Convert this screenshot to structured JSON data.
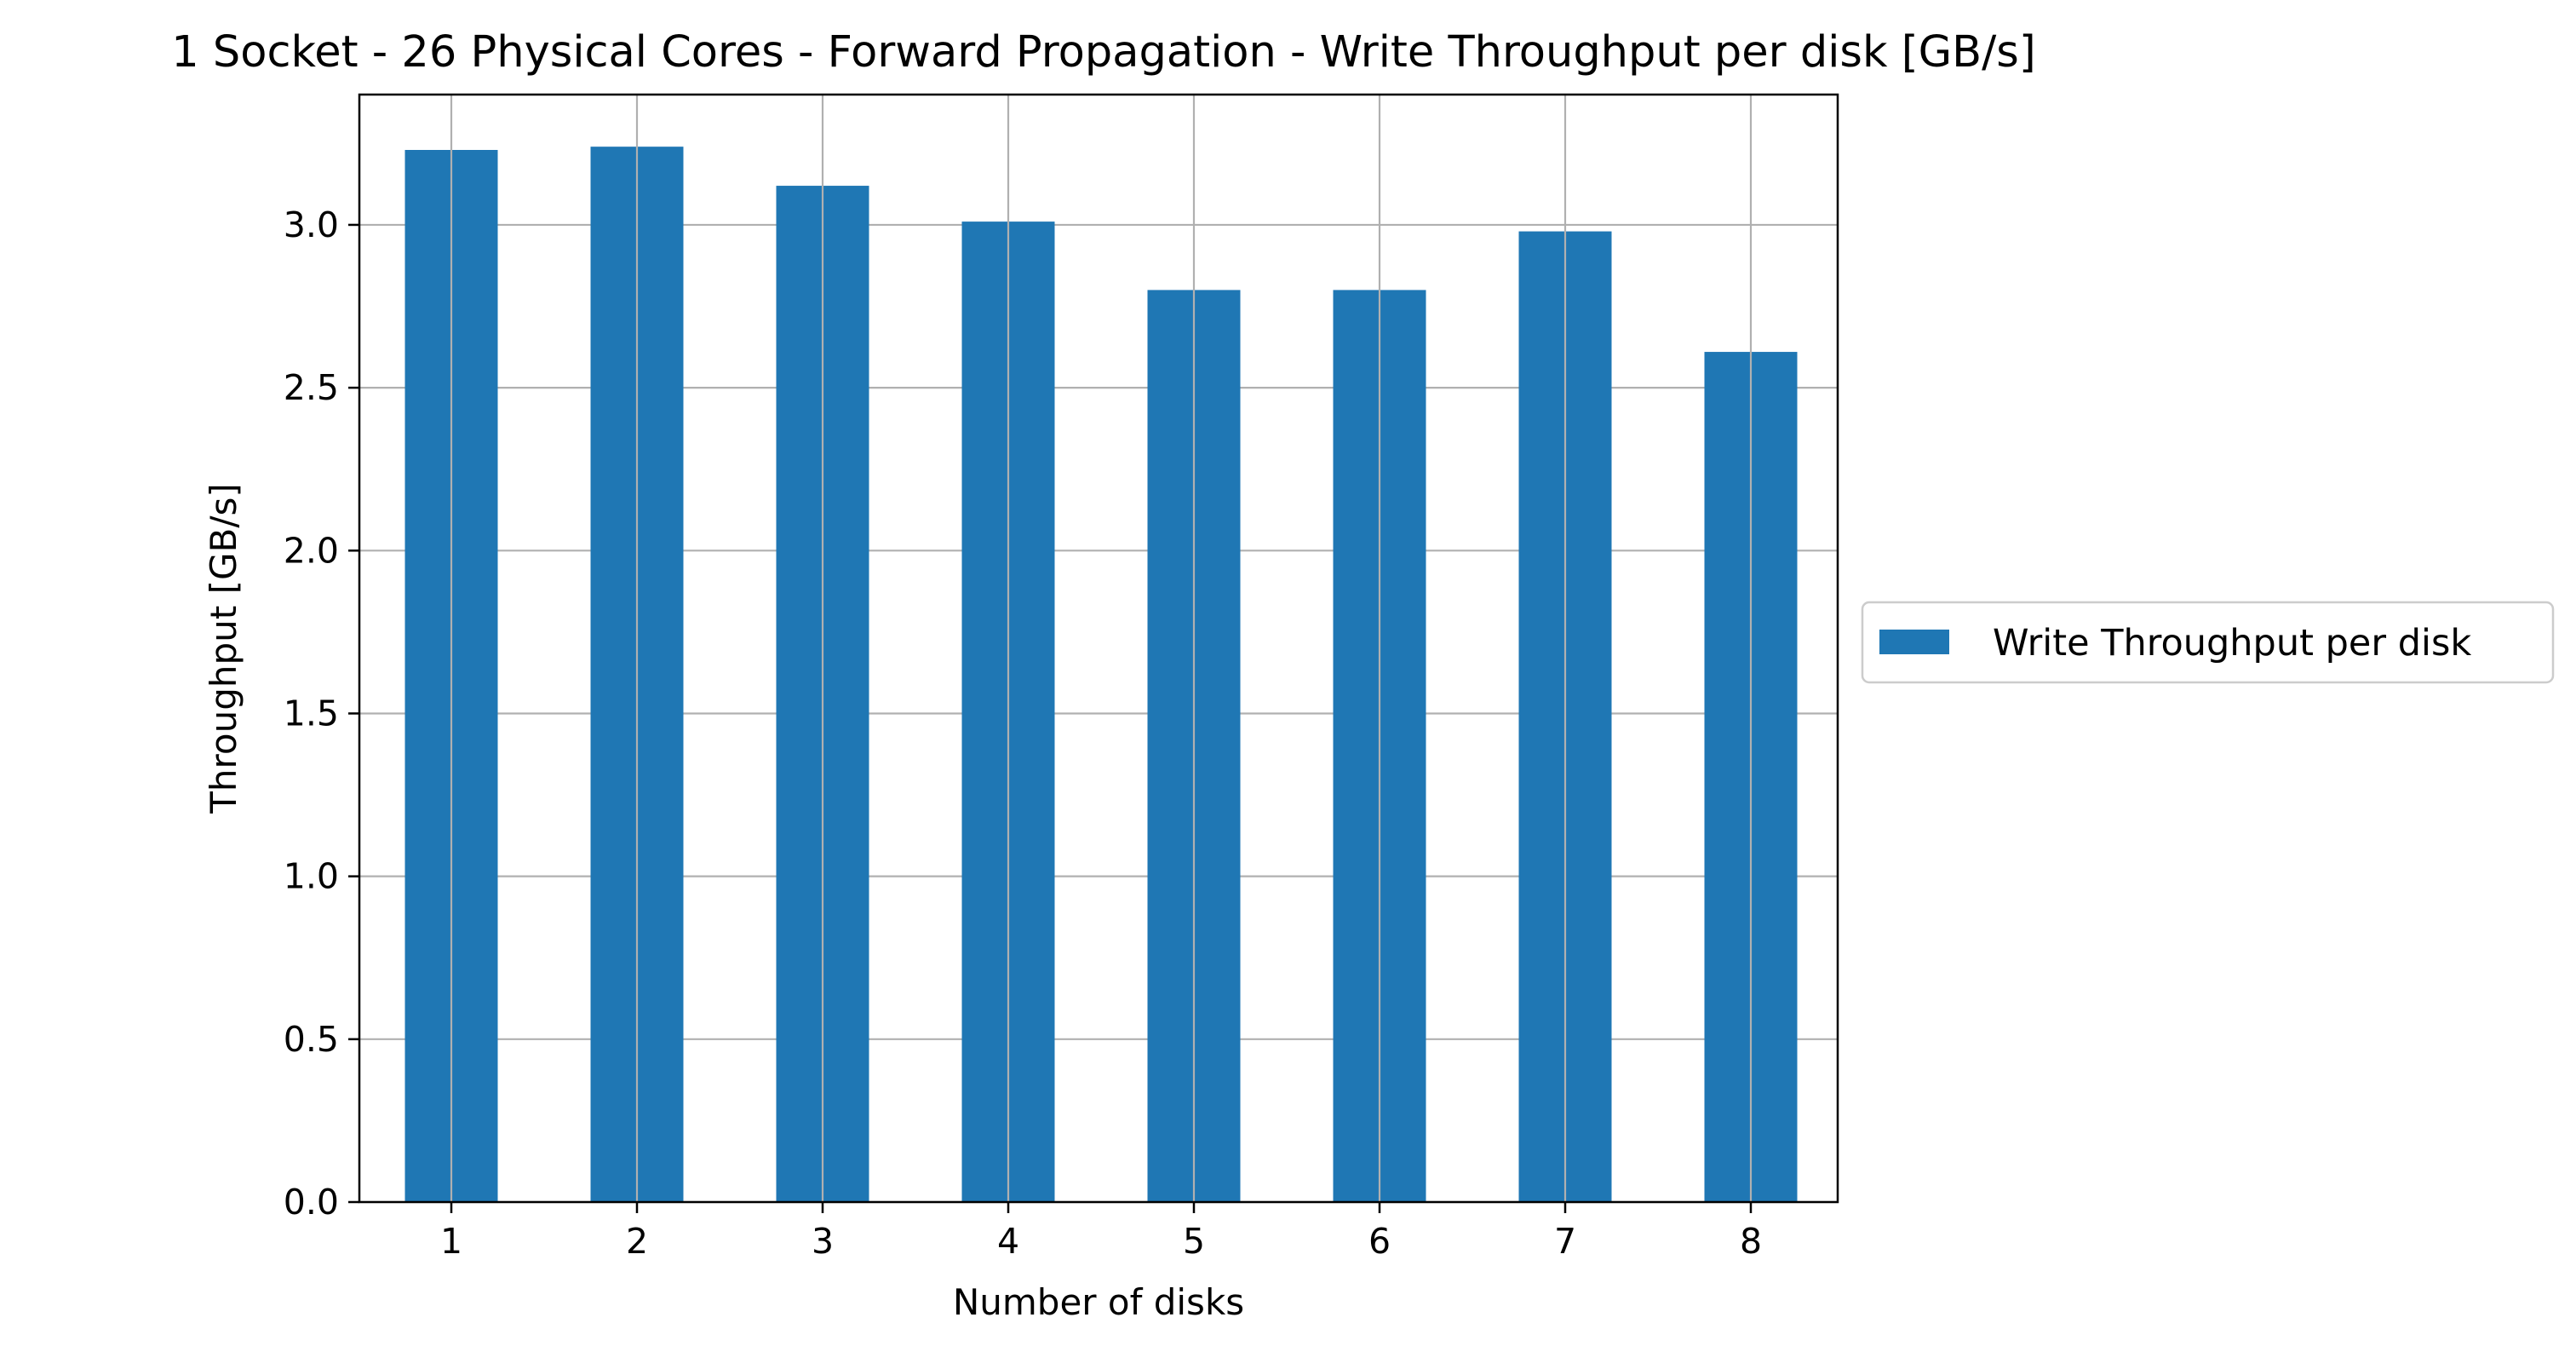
{
  "chart_data": {
    "type": "bar",
    "title": "1 Socket - 26 Physical Cores - Forward Propagation - Write Throughput per disk [GB/s]",
    "xlabel": "Number of disks",
    "ylabel": "Throughput [GB/s]",
    "categories": [
      "1",
      "2",
      "3",
      "4",
      "5",
      "6",
      "7",
      "8"
    ],
    "series": [
      {
        "name": "Write Throughput per disk",
        "color": "#1f77b4",
        "values": [
          3.23,
          3.24,
          3.12,
          3.01,
          2.8,
          2.8,
          2.98,
          2.61
        ]
      }
    ],
    "ylim": [
      0,
      3.4
    ],
    "yticks": [
      "0.0",
      "0.5",
      "1.0",
      "1.5",
      "2.0",
      "2.5",
      "3.0"
    ],
    "grid": true,
    "legend_position": "center-right outside plot"
  }
}
